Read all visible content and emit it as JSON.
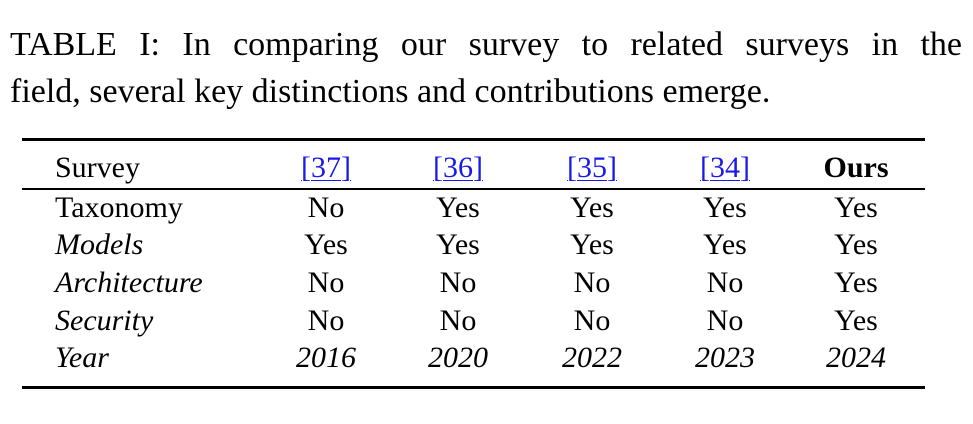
{
  "caption": {
    "lines": [
      "TABLE I: In comparing our survey to related surveys in the",
      "field, several key distinctions and contributions emerge."
    ]
  },
  "table": {
    "header": [
      "Survey",
      "[37]",
      "[36]",
      "[35]",
      "[34]",
      "Ours"
    ],
    "rows": [
      [
        "Taxonomy",
        "No",
        "Yes",
        "Yes",
        "Yes",
        "Yes"
      ],
      [
        "Models",
        "Yes",
        "Yes",
        "Yes",
        "Yes",
        "Yes"
      ],
      [
        "Architecture",
        "No",
        "No",
        "No",
        "No",
        "Yes"
      ],
      [
        "Security",
        "No",
        "No",
        "No",
        "No",
        "Yes"
      ],
      [
        "Year",
        "2016",
        "2020",
        "2022",
        "2023",
        "2024"
      ]
    ]
  }
}
